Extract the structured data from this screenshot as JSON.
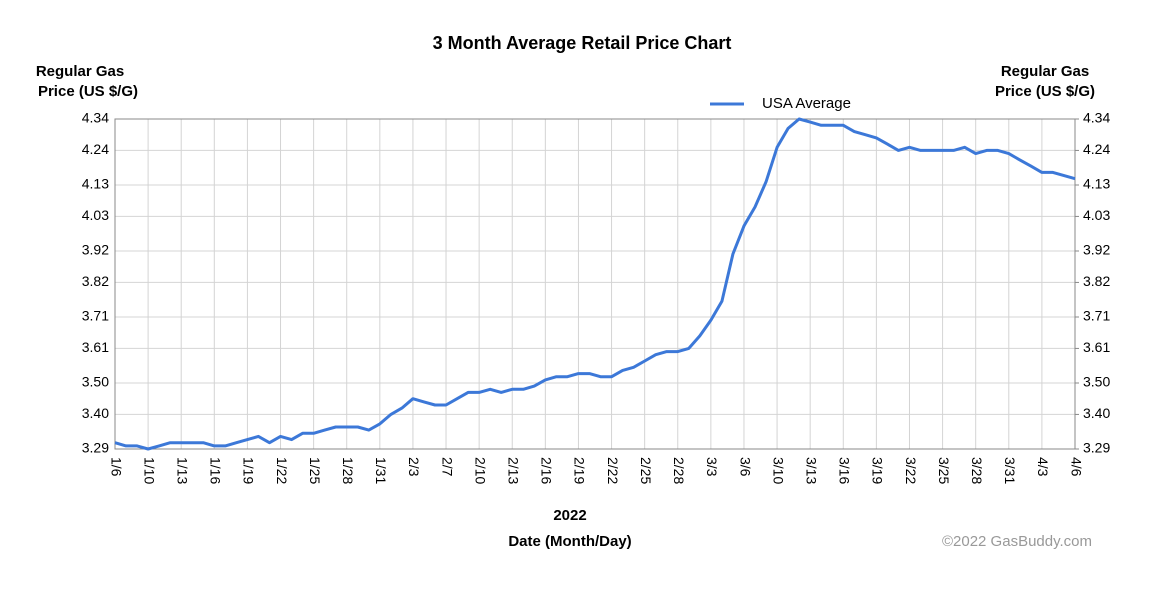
{
  "chart_data": {
    "type": "line",
    "title": "3 Month Average Retail Price Chart",
    "ylabel": [
      "Regular Gas",
      "Price (US $/G)"
    ],
    "y2label": [
      "Regular Gas",
      "Price (US $/G)"
    ],
    "xlabel": [
      "2022",
      "Date (Month/Day)"
    ],
    "credit": "©2022 GasBuddy.com",
    "grid": true,
    "legend": "top",
    "categories": [
      "1/6",
      null,
      null,
      "1/10",
      null,
      null,
      "1/13",
      null,
      null,
      "1/16",
      null,
      null,
      "1/19",
      null,
      null,
      "1/22",
      null,
      null,
      "1/25",
      null,
      null,
      "1/28",
      null,
      null,
      "1/31",
      null,
      null,
      "2/3",
      null,
      null,
      "2/7",
      null,
      null,
      "2/10",
      null,
      null,
      "2/13",
      null,
      null,
      "2/16",
      null,
      null,
      "2/19",
      null,
      null,
      "2/22",
      null,
      null,
      "2/25",
      null,
      null,
      "2/28",
      null,
      null,
      "3/3",
      null,
      null,
      "3/6",
      null,
      null,
      "3/10",
      null,
      null,
      "3/13",
      null,
      null,
      "3/16",
      null,
      null,
      "3/19",
      null,
      null,
      "3/22",
      null,
      null,
      "3/25",
      null,
      null,
      "3/28",
      null,
      null,
      "3/31",
      null,
      null,
      "4/3",
      null,
      null,
      "4/6"
    ],
    "series": [
      {
        "name": "USA Average",
        "color": "#3c78d8",
        "values": [
          3.31,
          3.3,
          3.3,
          3.29,
          3.3,
          3.31,
          3.31,
          3.31,
          3.31,
          3.3,
          3.3,
          3.31,
          3.32,
          3.33,
          3.31,
          3.33,
          3.32,
          3.34,
          3.34,
          3.35,
          3.36,
          3.36,
          3.36,
          3.35,
          3.37,
          3.4,
          3.42,
          3.45,
          3.44,
          3.43,
          3.43,
          3.45,
          3.47,
          3.47,
          3.48,
          3.47,
          3.48,
          3.48,
          3.49,
          3.51,
          3.52,
          3.52,
          3.53,
          3.53,
          3.52,
          3.52,
          3.54,
          3.55,
          3.57,
          3.59,
          3.6,
          3.6,
          3.61,
          3.65,
          3.7,
          3.76,
          3.91,
          4.0,
          4.06,
          4.14,
          4.25,
          4.31,
          4.34,
          4.33,
          4.32,
          4.32,
          4.32,
          4.3,
          4.29,
          4.28,
          4.26,
          4.24,
          4.25,
          4.24,
          4.24,
          4.24,
          4.24,
          4.25,
          4.23,
          4.24,
          4.24,
          4.23,
          4.21,
          4.19,
          4.17,
          4.17,
          4.16,
          4.15
        ]
      }
    ],
    "ylim": [
      3.29,
      4.34
    ],
    "yticks": [
      3.29,
      {
        "value": 3.4,
        "label": "3.40"
      },
      {
        "value": 3.5,
        "label": "3.50"
      },
      3.61,
      3.71,
      3.82,
      3.92,
      4.03,
      4.13,
      4.24,
      4.34
    ],
    "y2lim": [
      3.29,
      4.34
    ],
    "y2ticks": [
      3.29,
      {
        "value": 3.4,
        "label": "3.40"
      },
      {
        "value": 3.5,
        "label": "3.50"
      },
      3.61,
      3.71,
      3.82,
      3.92,
      4.03,
      4.13,
      4.24,
      4.34
    ]
  }
}
